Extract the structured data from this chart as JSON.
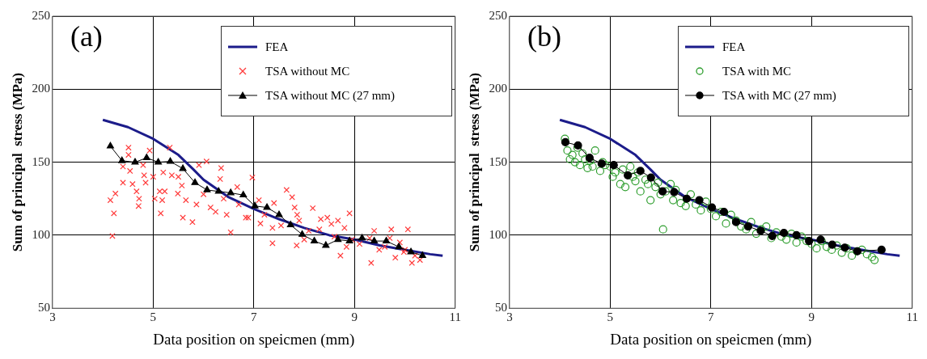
{
  "chart_data": [
    {
      "type": "line",
      "xlabel": "Data position on speicmen (mm)",
      "ylabel": "Sum of principal  stress (MPa)",
      "xlim": [
        3,
        11
      ],
      "xticks": [
        3,
        5,
        7,
        9,
        11
      ],
      "ylim": [
        50,
        250
      ],
      "yticks": [
        50,
        100,
        150,
        200,
        250
      ],
      "grid": true,
      "legend": "top right",
      "annotations": [
        "(a)"
      ],
      "series": [
        {
          "name": "FEA",
          "type": "line",
          "color": "#1c1c8a",
          "marker": "none",
          "line_style": "solid",
          "x": [
            4.0,
            4.5,
            5.0,
            5.5,
            5.8,
            6.0,
            6.5,
            7.0,
            7.5,
            8.0,
            8.5,
            9.0,
            9.5,
            10.0,
            10.5,
            10.75
          ],
          "values": [
            179,
            174,
            166,
            155,
            145,
            138,
            126,
            118,
            111,
            105,
            100,
            97,
            93,
            90,
            87,
            86
          ]
        },
        {
          "name": "TSA  without MC",
          "type": "scatter",
          "color": "#ff3b3b",
          "marker": "cross",
          "x": [
            4.19,
            4.22,
            4.15,
            4.25,
            4.4,
            4.51,
            4.51,
            4.54,
            4.59,
            4.67,
            4.71,
            4.72,
            4.82,
            4.85,
            4.93,
            5.0,
            5.03,
            5.13,
            5.15,
            5.23,
            5.18,
            5.33,
            5.37,
            5.49,
            5.57,
            5.59,
            5.65,
            5.78,
            5.86,
            5.91,
            6.06,
            6.14,
            6.24,
            6.35,
            6.33,
            6.46,
            6.54,
            6.67,
            6.84,
            6.97,
            7.13,
            7.65,
            7.76,
            7.81,
            7.86,
            7.37,
            7.85,
            8.17,
            8.33,
            8.46,
            8.54,
            8.67,
            8.72,
            8.9,
            8.84,
            9.33,
            9.49,
            9.73,
            9.81,
            10.06,
            10.14,
            9.98,
            9.39,
            8.95,
            8.09,
            7.54,
            7.21,
            6.89,
            7.37,
            9.1,
            9.3,
            9.6,
            9.9,
            10.2,
            10.3,
            8.6,
            8.3,
            7.9,
            7.1,
            6.7,
            6.0,
            5.5,
            5.2,
            4.8,
            4.4,
            6.4,
            7.4,
            8.0,
            8.8,
            9.7,
            10.0
          ],
          "values": [
            99.5,
            115,
            124,
            128.5,
            136,
            160,
            155,
            144,
            135,
            130,
            120,
            125,
            141,
            136,
            158,
            140,
            125,
            130,
            115,
            130,
            124,
            160,
            141,
            128.5,
            134,
            112,
            124,
            109,
            121,
            148,
            150.5,
            119,
            116,
            146,
            138.5,
            114,
            102,
            133,
            112,
            139.5,
            108,
            131,
            126,
            119,
            114,
            94.5,
            93,
            118.5,
            111,
            112,
            107.7,
            110,
            86,
            115,
            92,
            81,
            90,
            104,
            84.6,
            104,
            81,
            88.5,
            103,
            97,
            103,
            106.6,
            114,
            112,
            105,
            94,
            98,
            92,
            95,
            86,
            83,
            99,
            104,
            110,
            124,
            121,
            128,
            140,
            143,
            148,
            147,
            125,
            122,
            97,
            105,
            98,
            90
          ]
        },
        {
          "name": "TSA  without MC (27 mm)",
          "type": "line",
          "color": "#000000",
          "marker": "triangle",
          "line_style": "solid",
          "x": [
            4.15,
            4.38,
            4.64,
            4.87,
            5.1,
            5.34,
            5.59,
            5.83,
            6.07,
            6.3,
            6.54,
            6.79,
            7.02,
            7.26,
            7.5,
            7.73,
            7.96,
            8.2,
            8.43,
            8.67,
            8.9,
            9.15,
            9.39,
            9.63,
            9.88,
            10.12,
            10.35
          ],
          "values": [
            161,
            151,
            150,
            153,
            150,
            150.5,
            145.6,
            136,
            131,
            130,
            129,
            127.5,
            120,
            119,
            114,
            107,
            100.5,
            96,
            93,
            97,
            96,
            98,
            96,
            96,
            92,
            88.5,
            86
          ]
        }
      ]
    },
    {
      "type": "line",
      "xlabel": "Data position on speicmen (mm)",
      "ylabel": "Sum of principal  stress (MPa)",
      "xlim": [
        3,
        11
      ],
      "xticks": [
        3,
        5,
        7,
        9,
        11
      ],
      "ylim": [
        50,
        250
      ],
      "yticks": [
        50,
        100,
        150,
        200,
        250
      ],
      "grid": true,
      "legend": "top right",
      "annotations": [
        "(b)"
      ],
      "series": [
        {
          "name": "FEA",
          "type": "line",
          "color": "#1c1c8a",
          "marker": "none",
          "line_style": "solid",
          "x": [
            4.0,
            4.5,
            5.0,
            5.5,
            5.8,
            6.0,
            6.5,
            7.0,
            7.5,
            8.0,
            8.5,
            9.0,
            9.5,
            10.0,
            10.5,
            10.75
          ],
          "values": [
            179,
            174,
            166,
            155,
            145,
            138,
            126,
            118,
            111,
            105,
            100,
            97,
            93,
            90,
            87,
            86
          ]
        },
        {
          "name": "TSA with MC",
          "type": "scatter",
          "color": "#2e9e2e",
          "marker": "circle",
          "x": [
            4.1,
            4.15,
            4.2,
            4.25,
            4.3,
            4.35,
            4.4,
            4.45,
            4.5,
            4.55,
            4.6,
            4.65,
            4.7,
            4.8,
            4.85,
            4.9,
            5.0,
            5.05,
            5.1,
            5.2,
            5.25,
            5.3,
            5.4,
            5.45,
            5.5,
            5.55,
            5.6,
            5.7,
            5.75,
            5.8,
            5.9,
            5.95,
            6.0,
            6.05,
            6.1,
            6.2,
            6.25,
            6.3,
            6.4,
            6.5,
            6.6,
            6.7,
            6.8,
            6.9,
            7.0,
            7.1,
            7.2,
            7.3,
            7.4,
            7.5,
            7.6,
            7.7,
            7.8,
            7.9,
            8.0,
            8.1,
            8.2,
            8.3,
            8.4,
            8.5,
            8.6,
            8.7,
            8.8,
            8.9,
            9.0,
            9.1,
            9.2,
            9.3,
            9.4,
            9.5,
            9.6,
            9.7,
            9.8,
            9.9,
            10.0,
            10.1,
            10.2,
            10.25
          ],
          "values": [
            166,
            158,
            152,
            155,
            150,
            160,
            148,
            156,
            152,
            146,
            151,
            147,
            158,
            144,
            150,
            148,
            147,
            140,
            143,
            135,
            145,
            133,
            147,
            140,
            137,
            143,
            130,
            138,
            135,
            124,
            133,
            136,
            128,
            104,
            130,
            135,
            124,
            131,
            122,
            120,
            128,
            121,
            117,
            123,
            118,
            113,
            116,
            108,
            114,
            110,
            106,
            104,
            109,
            101,
            104,
            106,
            98,
            102,
            99,
            97,
            101,
            95,
            99,
            96,
            94,
            91,
            96,
            92,
            90,
            93,
            88,
            91,
            86,
            89,
            90,
            87,
            85,
            83
          ]
        },
        {
          "name": "TSA with MC (27 mm)",
          "type": "line",
          "color": "#000000",
          "marker": "circle",
          "line_style": "solid",
          "x": [
            4.11,
            4.36,
            4.59,
            4.83,
            5.07,
            5.35,
            5.6,
            5.81,
            6.04,
            6.27,
            6.52,
            6.77,
            7.02,
            7.26,
            7.5,
            7.74,
            7.99,
            8.22,
            8.45,
            8.7,
            8.95,
            9.18,
            9.41,
            9.66,
            9.91,
            10.39
          ],
          "values": [
            163.7,
            161.5,
            153,
            149,
            148,
            141,
            144,
            139.5,
            130,
            129.5,
            125,
            124,
            119,
            116,
            109,
            106,
            103,
            99.5,
            101.6,
            100,
            96,
            97,
            93.5,
            91.5,
            89,
            90
          ]
        }
      ]
    }
  ]
}
